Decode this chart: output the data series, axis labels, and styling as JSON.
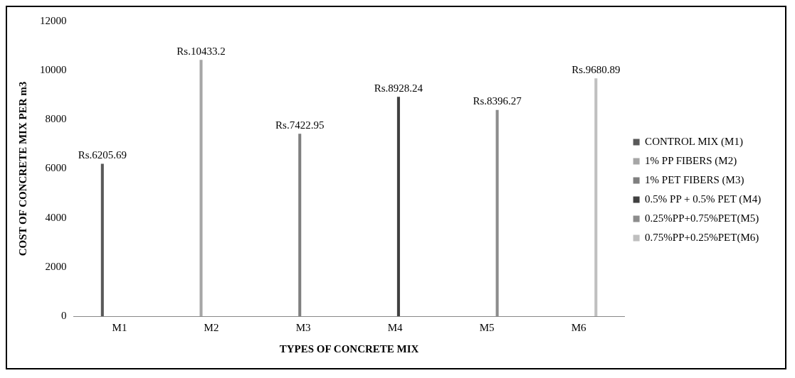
{
  "chart_data": {
    "type": "bar",
    "xlabel": "TYPES OF CONCRETE MIX",
    "ylabel": "COST OF CONCRETE MIX PER m3",
    "categories": [
      "M1",
      "M2",
      "M3",
      "M4",
      "M5",
      "M6"
    ],
    "series": [
      {
        "name": "CONTROL MIX (M1)",
        "color": "#595959",
        "values": [
          6205.69,
          null,
          null,
          null,
          null,
          null
        ],
        "value_labels": [
          "Rs.6205.69",
          null,
          null,
          null,
          null,
          null
        ]
      },
      {
        "name": "1% PP FIBERS (M2)",
        "color": "#a6a6a6",
        "values": [
          null,
          10433.2,
          null,
          null,
          null,
          null
        ],
        "value_labels": [
          null,
          "Rs.10433.2",
          null,
          null,
          null,
          null
        ]
      },
      {
        "name": "1% PET FIBERS (M3)",
        "color": "#7f7f7f",
        "values": [
          null,
          null,
          7422.95,
          null,
          null,
          null
        ],
        "value_labels": [
          null,
          null,
          "Rs.7422.95",
          null,
          null,
          null
        ]
      },
      {
        "name": "0.5% PP + 0.5% PET (M4)",
        "color": "#404040",
        "values": [
          null,
          null,
          null,
          8928.24,
          null,
          null
        ],
        "value_labels": [
          null,
          null,
          null,
          "Rs.8928.24",
          null,
          null
        ]
      },
      {
        "name": "0.25%PP+0.75%PET(M5)",
        "color": "#8c8c8c",
        "values": [
          null,
          null,
          null,
          null,
          8396.27,
          null
        ],
        "value_labels": [
          null,
          null,
          null,
          null,
          "Rs.8396.27",
          null
        ]
      },
      {
        "name": "0.75%PP+0.25%PET(M6)",
        "color": "#bfbfbf",
        "values": [
          null,
          null,
          null,
          null,
          null,
          9680.89
        ],
        "value_labels": [
          null,
          null,
          null,
          null,
          null,
          "Rs.9680.89"
        ]
      }
    ],
    "ylim": [
      0,
      12000
    ],
    "yticks": [
      0,
      2000,
      4000,
      6000,
      8000,
      10000,
      12000
    ],
    "grid": false,
    "legend": "right"
  }
}
